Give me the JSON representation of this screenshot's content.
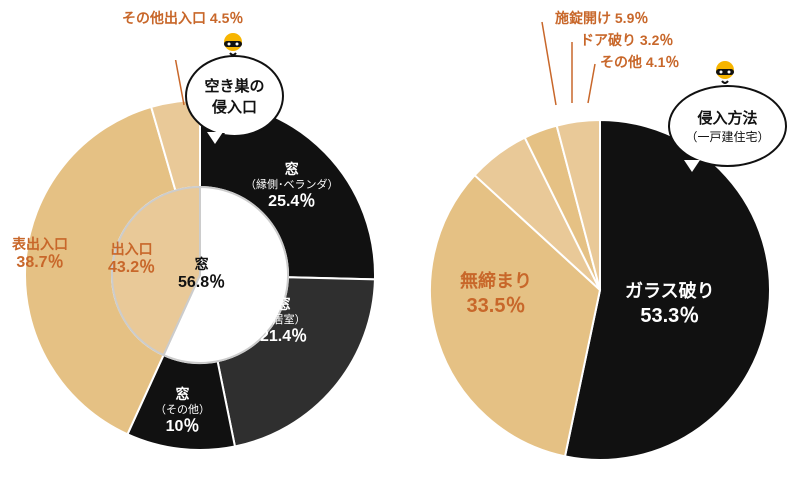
{
  "colors": {
    "black": "#111111",
    "dark": "#2f2f2f",
    "tan": "#e5c184",
    "tan2": "#e9c998",
    "white": "#ffffff",
    "orange_text": "#c8672a"
  },
  "left_chart": {
    "type": "pie-nested",
    "callout_title_line1": "空き巣の",
    "callout_title_line2": "侵入口",
    "top_note": "その他出入口 4.5％",
    "inner": [
      {
        "label": "窓",
        "pct": 56.8,
        "color": "#ffffff",
        "text_color": "#111111"
      },
      {
        "label": "出入口",
        "pct": 43.2,
        "color": "#e9c998",
        "text_color": "#c8672a"
      }
    ],
    "outer": [
      {
        "label": "窓",
        "sub": "（縁側･ベランダ）",
        "pct": 25.4,
        "color": "#111111",
        "text_color": "#ffffff"
      },
      {
        "label": "窓",
        "sub": "（居室）",
        "pct": 21.4,
        "color": "#2f2f2f",
        "text_color": "#ffffff"
      },
      {
        "label": "窓",
        "sub": "（その他）",
        "pct": 10.0,
        "color": "#111111",
        "text_color": "#ffffff"
      },
      {
        "label": "表出入口",
        "sub": "",
        "pct": 38.7,
        "color": "#e5c184",
        "text_color": "#c8672a"
      },
      {
        "label": "その他出入口",
        "sub": "",
        "pct": 4.5,
        "color": "#e9c998",
        "text_color": "#c8672a"
      }
    ]
  },
  "right_chart": {
    "type": "pie",
    "callout_title_line1": "侵入方法",
    "callout_title_line2": "（一戸建住宅）",
    "top_notes": [
      "施錠開け 5.9％",
      "ドア破り 3.2％",
      "その他 4.1％"
    ],
    "slices": [
      {
        "label": "ガラス破り",
        "pct": 53.3,
        "color": "#111111",
        "text_color": "#ffffff"
      },
      {
        "label": "無締まり",
        "pct": 33.5,
        "color": "#e5c184",
        "text_color": "#c8672a"
      },
      {
        "label": "施錠開け",
        "pct": 5.9,
        "color": "#e9c998",
        "text_color": "#c8672a"
      },
      {
        "label": "ドア破り",
        "pct": 3.2,
        "color": "#e5c184",
        "text_color": "#c8672a"
      },
      {
        "label": "その他",
        "pct": 4.1,
        "color": "#e9c998",
        "text_color": "#c8672a"
      }
    ]
  }
}
